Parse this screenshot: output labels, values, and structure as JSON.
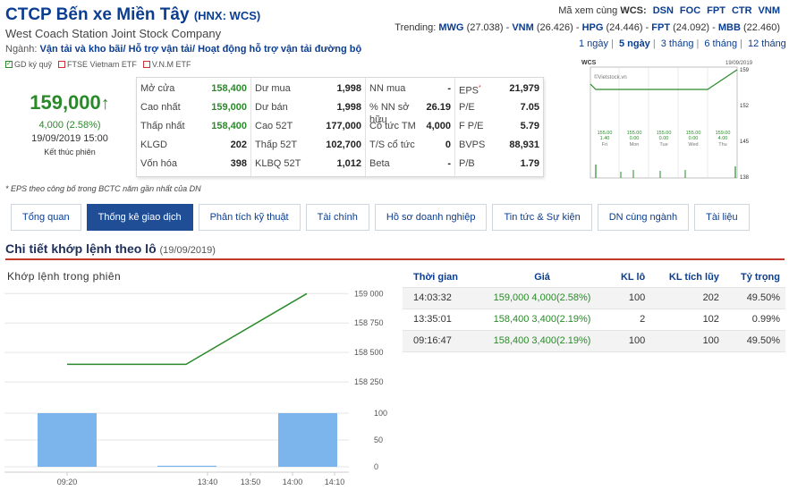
{
  "header": {
    "title": "CTCP Bến xe Miền Tây",
    "exchange": "(HNX: WCS)",
    "subtitle": "West Coach Station Joint Stock Company",
    "industry_label": "Ngành:",
    "industry_value": "Vận tải và kho bãi/ Hỗ trợ vận tải/ Hoạt động hỗ trợ vận tải đường bộ",
    "badges": [
      "GD ký quỹ",
      "FTSE Vietnam ETF",
      "V.N.M ETF"
    ]
  },
  "same_code": {
    "label_prefix": "Mã xem cùng",
    "label_code": "WCS:",
    "codes": [
      "DSN",
      "FOC",
      "FPT",
      "CTR",
      "VNM"
    ]
  },
  "trending": {
    "label": "Trending:",
    "items": [
      {
        "code": "MWG",
        "value": "(27.038)"
      },
      {
        "code": "VNM",
        "value": "(26.426)"
      },
      {
        "code": "HPG",
        "value": "(24.446)"
      },
      {
        "code": "FPT",
        "value": "(24.092)"
      },
      {
        "code": "MBB",
        "value": "(22.460)"
      }
    ]
  },
  "periods": [
    "1 ngày",
    "5 ngày",
    "3 tháng",
    "6 tháng",
    "12 tháng"
  ],
  "periods_active": "5 ngày",
  "price": {
    "value": "159,000",
    "arrow": "↑",
    "change": "4,000 (2.58%)",
    "datetime": "19/09/2019 15:00",
    "status": "Kết thúc phiên"
  },
  "stats": {
    "col1": [
      {
        "k": "Mở cửa",
        "v": "158,400",
        "green": true
      },
      {
        "k": "Cao nhất",
        "v": "159,000",
        "green": true
      },
      {
        "k": "Thấp nhất",
        "v": "158,400",
        "green": true
      },
      {
        "k": "KLGD",
        "v": "202"
      },
      {
        "k": "Vốn hóa",
        "v": "398"
      }
    ],
    "col2": [
      {
        "k": "Dư mua",
        "v": "1,998"
      },
      {
        "k": "Dư bán",
        "v": "1,998"
      },
      {
        "k": "Cao 52T",
        "v": "177,000"
      },
      {
        "k": "Thấp 52T",
        "v": "102,700"
      },
      {
        "k": "KLBQ 52T",
        "v": "1,012"
      }
    ],
    "col3": [
      {
        "k": "NN mua",
        "v": "-"
      },
      {
        "k": "% NN sở hữu",
        "v": "26.19"
      },
      {
        "k": "Cổ tức TM",
        "v": "4,000"
      },
      {
        "k": "T/S cổ tức",
        "v": "0"
      },
      {
        "k": "Beta",
        "v": "-"
      }
    ],
    "col4": [
      {
        "k": "EPS",
        "v": "21,979",
        "star": "*"
      },
      {
        "k": "P/E",
        "v": "7.05"
      },
      {
        "k": "F P/E",
        "v": "5.79"
      },
      {
        "k": "BVPS",
        "v": "88,931"
      },
      {
        "k": "P/B",
        "v": "1.79"
      }
    ]
  },
  "mini_chart": {
    "symbol": "WCS",
    "date": "19/09/2019",
    "watermark": "©Vietstock.vn",
    "yticks": [
      "159",
      "152",
      "145",
      "138"
    ],
    "days": [
      {
        "price": "155.00",
        "chg": "1.40",
        "day": "Fri"
      },
      {
        "price": "155.00",
        "chg": "0.00",
        "day": "Mon"
      },
      {
        "price": "155.00",
        "chg": "0.00",
        "day": "Tue"
      },
      {
        "price": "155.00",
        "chg": "0.00",
        "day": "Wed"
      },
      {
        "price": "159.00",
        "chg": "4.00",
        "day": "Thu"
      }
    ]
  },
  "eps_note": "* EPS theo công bố trong BCTC năm gần nhất của DN",
  "tabs": [
    "Tổng quan",
    "Thống kê giao dịch",
    "Phân tích kỹ thuật",
    "Tài chính",
    "Hồ sơ doanh nghiệp",
    "Tin tức & Sự kiện",
    "DN cùng ngành",
    "Tài liệu"
  ],
  "tab_active": "Thống kê giao dịch",
  "section": {
    "title": "Chi tiết khớp lệnh theo lô",
    "date": "(19/09/2019)"
  },
  "intraday": {
    "title": "Khớp lệnh trong phiên",
    "colors": {
      "line": "#2a8a2a",
      "volume": "#7cb5ec"
    }
  },
  "chart_data": {
    "type": "line",
    "title": "Khớp lệnh trong phiên",
    "x_ticks": [
      "09:20",
      "13:40",
      "13:50",
      "14:00",
      "14:10"
    ],
    "price_series": {
      "x": [
        "09:16:47",
        "13:35:01",
        "14:03:32"
      ],
      "y": [
        158400,
        158400,
        159000
      ],
      "yticks": [
        "159 000",
        "158 750",
        "158 500",
        "158 250"
      ],
      "ylim": [
        158175,
        159025
      ]
    },
    "volume_series": {
      "x": [
        "09:16:47",
        "13:35:01",
        "14:03:32"
      ],
      "y": [
        100,
        2,
        100
      ],
      "yticks": [
        "100",
        "50",
        "0"
      ],
      "ylim": [
        0,
        100
      ]
    }
  },
  "trades": {
    "headers": [
      "Thời gian",
      "Giá",
      "KL lô",
      "KL tích lũy",
      "Tỷ trọng"
    ],
    "rows": [
      {
        "time": "14:03:32",
        "price": "159,000 4,000(2.58%)",
        "lot": "100",
        "cum": "202",
        "pct": "49.50%"
      },
      {
        "time": "13:35:01",
        "price": "158,400 3,400(2.19%)",
        "lot": "2",
        "cum": "102",
        "pct": "0.99%"
      },
      {
        "time": "09:16:47",
        "price": "158,400 3,400(2.19%)",
        "lot": "100",
        "cum": "100",
        "pct": "49.50%"
      }
    ]
  }
}
